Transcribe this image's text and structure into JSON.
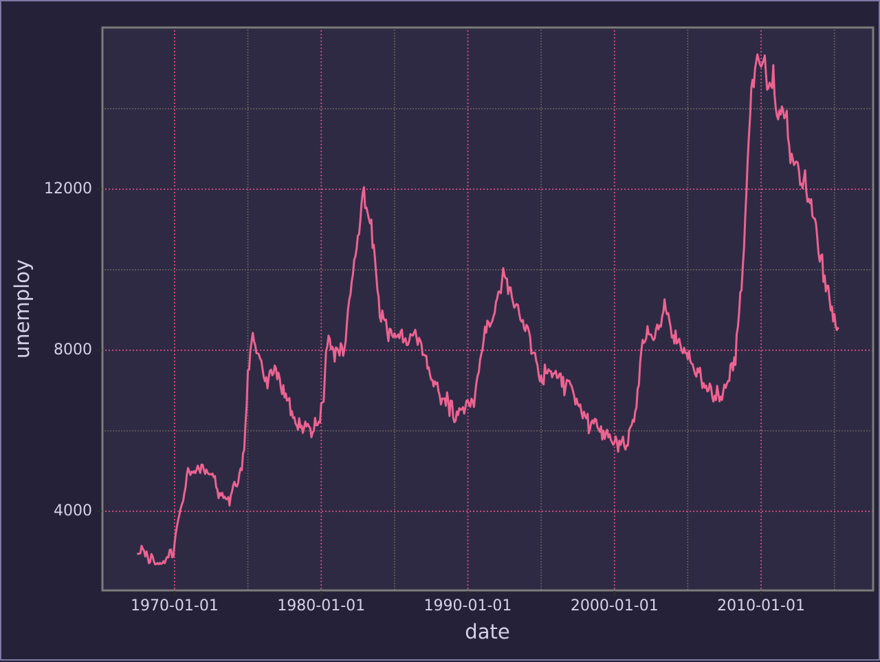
{
  "chart_data": {
    "type": "line",
    "title": "",
    "xlabel": "date",
    "ylabel": "unemploy",
    "legend": "none",
    "grid": "major-dotted-pink, minor-dotted-tan",
    "x_ticks": [
      {
        "year": 1970,
        "label": "1970-01-01"
      },
      {
        "year": 1980,
        "label": "1980-01-01"
      },
      {
        "year": 1990,
        "label": "1990-01-01"
      },
      {
        "year": 2000,
        "label": "2000-01-01"
      },
      {
        "year": 2010,
        "label": "2010-01-01"
      }
    ],
    "x_minor_years": [
      1975,
      1985,
      1995,
      2005,
      2015
    ],
    "y_ticks": [
      {
        "value": 4000,
        "label": "4000"
      },
      {
        "value": 8000,
        "label": "8000"
      },
      {
        "value": 12000,
        "label": "12000"
      }
    ],
    "y_minor_values": [
      6000,
      10000,
      14000
    ],
    "x_range_years": [
      1965.08,
      2017.64
    ],
    "y_range": [
      2034,
      16018
    ],
    "series": [
      {
        "name": "unemploy",
        "start_year_fraction": 1967.5,
        "points_per_year": 12,
        "values": [
          2944,
          2945,
          2958,
          3143,
          3066,
          3018,
          2878,
          3001,
          2877,
          2709,
          2740,
          2938,
          2883,
          2768,
          2686,
          2689,
          2715,
          2685,
          2718,
          2692,
          2712,
          2758,
          2713,
          2816,
          2868,
          2856,
          3040,
          3049,
          2856,
          2884,
          3201,
          3453,
          3635,
          3797,
          3919,
          4071,
          4175,
          4256,
          4456,
          4591,
          4898,
          5076,
          4986,
          4903,
          4987,
          4959,
          4996,
          4949,
          5035,
          5134,
          5042,
          4954,
          5161,
          5154,
          5019,
          4928,
          5038,
          4959,
          4922,
          4923,
          4913,
          4939,
          4849,
          4875,
          4602,
          4543,
          4326,
          4452,
          4394,
          4459,
          4329,
          4363,
          4305,
          4305,
          4350,
          4144,
          4396,
          4489,
          4644,
          4731,
          4634,
          4618,
          4705,
          4927,
          5063,
          5022,
          5437,
          5523,
          6140,
          6636,
          7501,
          7520,
          7978,
          8210,
          8433,
          8220,
          8127,
          7928,
          7923,
          7897,
          7794,
          7744,
          7534,
          7326,
          7230,
          7330,
          7053,
          7322,
          7490,
          7518,
          7380,
          7430,
          7620,
          7545,
          7280,
          7443,
          7307,
          7059,
          6911,
          7134,
          6829,
          6925,
          6751,
          6763,
          6815,
          6386,
          6489,
          6318,
          6337,
          6180,
          6127,
          6028,
          6309,
          6080,
          6125,
          5947,
          6077,
          6228,
          6109,
          6173,
          6109,
          6069,
          5840,
          5959,
          5996,
          6320,
          6137,
          6141,
          6226,
          6205,
          6683,
          6702,
          6729,
          7358,
          7984,
          8098,
          8363,
          8281,
          8021,
          8088,
          8023,
          7718,
          8071,
          8051,
          7982,
          7869,
          8174,
          8098,
          7863,
          8036,
          8230,
          8646,
          9029,
          9267,
          9397,
          9705,
          9895,
          10244,
          10335,
          10538,
          10849,
          10881,
          11217,
          11649,
          11911,
          12051,
          11534,
          11545,
          11408,
          11268,
          11154,
          11246,
          10548,
          10623,
          10282,
          9887,
          9499,
          9331,
          8823,
          8712,
          8989,
          8791,
          8746,
          8762,
          8456,
          8226,
          8537,
          8519,
          8367,
          8323,
          8423,
          8321,
          8339,
          8395,
          8302,
          8460,
          8513,
          8196,
          8248,
          8298,
          8128,
          8138,
          8235,
          8402,
          8383,
          8364,
          8439,
          8508,
          8319,
          8135,
          8310,
          8243,
          8159,
          7883,
          7892,
          7865,
          7862,
          7542,
          7574,
          7398,
          7268,
          7261,
          7102,
          7227,
          7160,
          7199,
          6983,
          6873,
          6655,
          6799,
          6801,
          6803,
          6622,
          6955,
          6731,
          6367,
          6750,
          6739,
          6331,
          6212,
          6249,
          6481,
          6392,
          6560,
          6518,
          6538,
          6585,
          6425,
          6580,
          6750,
          6752,
          6651,
          6598,
          6797,
          6742,
          6590,
          6922,
          7188,
          7368,
          7459,
          7764,
          7901,
          8015,
          8265,
          8586,
          8439,
          8736,
          8692,
          8586,
          8666,
          8722,
          8842,
          8931,
          9198,
          9283,
          9454,
          9460,
          9415,
          9744,
          10040,
          9850,
          9787,
          9781,
          9398,
          9565,
          9557,
          9325,
          9183,
          9056,
          9110,
          9149,
          9121,
          8930,
          8763,
          8714,
          8750,
          8542,
          8477,
          8630,
          8583,
          8470,
          8331,
          7915,
          7927,
          7946,
          7933,
          7734,
          7632,
          7375,
          7230,
          7375,
          7187,
          7153,
          7645,
          7430,
          7427,
          7527,
          7484,
          7478,
          7328,
          7426,
          7423,
          7491,
          7313,
          7318,
          7415,
          7423,
          7095,
          7337,
          6882,
          7087,
          7267,
          7240,
          7245,
          7158,
          7102,
          7000,
          6873,
          6655,
          6799,
          6655,
          6608,
          6656,
          6454,
          6308,
          6476,
          6368,
          6306,
          6422,
          5941,
          6047,
          6212,
          6259,
          6179,
          6300,
          6280,
          6100,
          6032,
          5976,
          6111,
          5783,
          6004,
          5796,
          5951,
          6025,
          5838,
          5915,
          5778,
          5716,
          5653,
          5708,
          5858,
          5733,
          5481,
          5758,
          5651,
          5747,
          5853,
          5625,
          5534,
          5639,
          5634,
          6023,
          6089,
          6141,
          6271,
          6226,
          6484,
          6583,
          7042,
          7142,
          7694,
          8003,
          8258,
          8182,
          8215,
          8304,
          8599,
          8399,
          8393,
          8390,
          8304,
          8251,
          8307,
          8520,
          8640,
          8520,
          8618,
          8588,
          8842,
          8957,
          9266,
          9011,
          8896,
          8921,
          8732,
          8576,
          8317,
          8370,
          8167,
          8491,
          8170,
          8212,
          8286,
          8136,
          7990,
          7927,
          8061,
          7932,
          7934,
          7784,
          7980,
          7737,
          7672,
          7651,
          7524,
          7406,
          7345,
          7553,
          7453,
          7566,
          7279,
          7064,
          7184,
          7072,
          7120,
          6980,
          7001,
          7175,
          7091,
          6847,
          6727,
          6872,
          6762,
          7116,
          6927,
          6731,
          6850,
          6766,
          6979,
          7149,
          7067,
          7170,
          7237,
          7240,
          7645,
          7685,
          7497,
          7822,
          7637,
          8395,
          8575,
          8937,
          9438,
          9494,
          10074,
          10538,
          11286,
          11919,
          12714,
          13310,
          13816,
          14518,
          14721,
          14534,
          14993,
          15159,
          15352,
          15219,
          15098,
          15046,
          15113,
          15202,
          15325,
          14849,
          14474,
          14512,
          14648,
          14579,
          14516,
          15081,
          14348,
          14013,
          13820,
          13737,
          13957,
          13855,
          14059,
          13962,
          13763,
          13818,
          13948,
          13275,
          13093,
          12650,
          12883,
          12732,
          12603,
          12668,
          12688,
          12657,
          12449,
          12106,
          12141,
          12026,
          12272,
          12471,
          11950,
          11689,
          11760,
          11654,
          11751,
          11335,
          11279,
          11270,
          11136,
          10787,
          10404,
          10202,
          10349,
          10380,
          9702,
          9859,
          9460,
          9608,
          9599,
          9262,
          8990,
          9090,
          8717,
          8903,
          8610,
          8504,
          8549
        ]
      }
    ]
  },
  "colors": {
    "background": "#242138",
    "panel_background": "#2e2a44",
    "panel_border": "#7b7b78",
    "figure_border": "#7d78a2",
    "line": "#ec6391",
    "grid_major": "#d24a80",
    "grid_minor": "#8d7f6c",
    "text": "#d5d1e9",
    "tick_mark": "#2b2b30"
  }
}
